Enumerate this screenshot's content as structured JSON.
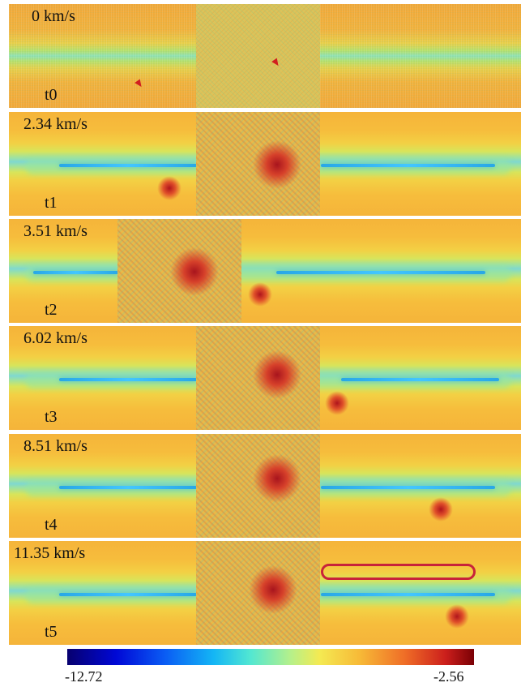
{
  "panels": [
    {
      "velocity": "0 km/s",
      "time": "t0"
    },
    {
      "velocity": "2.34 km/s",
      "time": "t1"
    },
    {
      "velocity": "3.51 km/s",
      "time": "t2"
    },
    {
      "velocity": "6.02 km/s",
      "time": "t3"
    },
    {
      "velocity": "8.51 km/s",
      "time": "t4"
    },
    {
      "velocity": "11.35 km/s",
      "time": "t5"
    }
  ],
  "colorbar": {
    "min_label": "-12.72",
    "max_label": "-2.56",
    "colors": [
      "#07006f",
      "#0008d6",
      "#0a5cf4",
      "#14b6f5",
      "#52e7d2",
      "#b6f08a",
      "#f4ea52",
      "#f7b937",
      "#ef6d27",
      "#cc1f1c",
      "#7a0005"
    ]
  }
}
